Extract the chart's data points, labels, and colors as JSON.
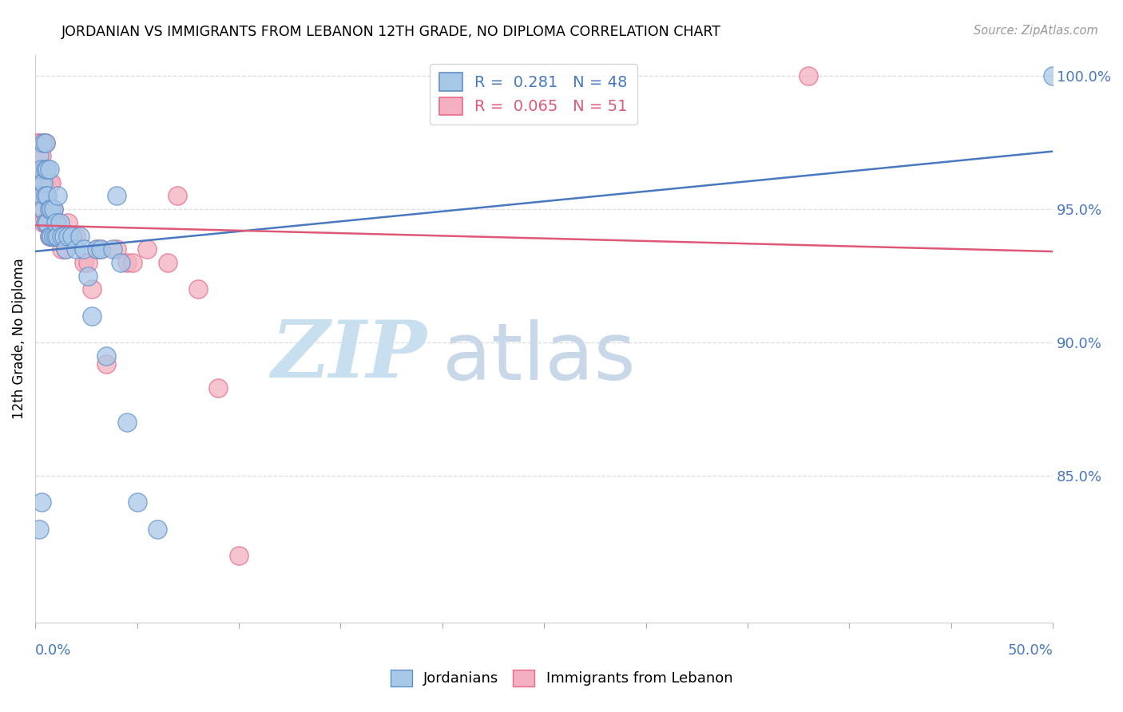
{
  "title": "JORDANIAN VS IMMIGRANTS FROM LEBANON 12TH GRADE, NO DIPLOMA CORRELATION CHART",
  "source": "Source: ZipAtlas.com",
  "ylabel": "12th Grade, No Diploma",
  "legend_label_blue": "Jordanians",
  "legend_label_pink": "Immigrants from Lebanon",
  "xmin": 0.0,
  "xmax": 0.5,
  "ymin": 0.795,
  "ymax": 1.008,
  "yticks": [
    0.85,
    0.9,
    0.95,
    1.0
  ],
  "ytick_labels": [
    "85.0%",
    "90.0%",
    "95.0%",
    "100.0%"
  ],
  "blue_R": 0.281,
  "blue_N": 48,
  "pink_R": 0.065,
  "pink_N": 51,
  "blue_color": "#a8c8e8",
  "pink_color": "#f4b0c0",
  "blue_edge_color": "#6090c8",
  "pink_edge_color": "#e86888",
  "blue_line_color": "#4878c0",
  "pink_line_color": "#e05878",
  "watermark_zip_color": "#c8dff0",
  "watermark_atlas_color": "#c8d8e8",
  "background_color": "#ffffff",
  "grid_color": "#dddddd",
  "blue_scatter_x": [
    0.002,
    0.003,
    0.003,
    0.003,
    0.004,
    0.004,
    0.004,
    0.005,
    0.005,
    0.005,
    0.005,
    0.006,
    0.006,
    0.006,
    0.007,
    0.007,
    0.007,
    0.008,
    0.008,
    0.009,
    0.009,
    0.01,
    0.01,
    0.011,
    0.011,
    0.012,
    0.013,
    0.014,
    0.015,
    0.016,
    0.018,
    0.02,
    0.022,
    0.024,
    0.026,
    0.028,
    0.03,
    0.032,
    0.035,
    0.038,
    0.04,
    0.042,
    0.05,
    0.06,
    0.002,
    0.003,
    0.045,
    0.5
  ],
  "blue_scatter_y": [
    0.97,
    0.96,
    0.955,
    0.965,
    0.95,
    0.96,
    0.975,
    0.945,
    0.955,
    0.965,
    0.975,
    0.945,
    0.955,
    0.965,
    0.94,
    0.95,
    0.965,
    0.94,
    0.95,
    0.94,
    0.95,
    0.94,
    0.945,
    0.94,
    0.955,
    0.945,
    0.94,
    0.94,
    0.935,
    0.94,
    0.94,
    0.935,
    0.94,
    0.935,
    0.925,
    0.91,
    0.935,
    0.935,
    0.895,
    0.935,
    0.955,
    0.93,
    0.84,
    0.83,
    0.83,
    0.84,
    0.87,
    1.0
  ],
  "pink_scatter_x": [
    0.001,
    0.002,
    0.002,
    0.002,
    0.003,
    0.003,
    0.003,
    0.003,
    0.004,
    0.004,
    0.004,
    0.004,
    0.005,
    0.005,
    0.005,
    0.005,
    0.006,
    0.006,
    0.007,
    0.007,
    0.007,
    0.008,
    0.008,
    0.008,
    0.009,
    0.009,
    0.01,
    0.01,
    0.011,
    0.012,
    0.013,
    0.015,
    0.016,
    0.018,
    0.02,
    0.024,
    0.026,
    0.028,
    0.03,
    0.032,
    0.035,
    0.04,
    0.045,
    0.048,
    0.055,
    0.065,
    0.07,
    0.08,
    0.09,
    0.1,
    0.38
  ],
  "pink_scatter_y": [
    0.975,
    0.96,
    0.965,
    0.975,
    0.95,
    0.96,
    0.965,
    0.97,
    0.945,
    0.955,
    0.96,
    0.975,
    0.945,
    0.955,
    0.96,
    0.975,
    0.945,
    0.955,
    0.94,
    0.95,
    0.96,
    0.94,
    0.945,
    0.96,
    0.94,
    0.95,
    0.94,
    0.945,
    0.94,
    0.94,
    0.935,
    0.935,
    0.945,
    0.94,
    0.94,
    0.93,
    0.93,
    0.92,
    0.935,
    0.935,
    0.892,
    0.935,
    0.93,
    0.93,
    0.935,
    0.93,
    0.955,
    0.92,
    0.883,
    0.82,
    1.0
  ]
}
